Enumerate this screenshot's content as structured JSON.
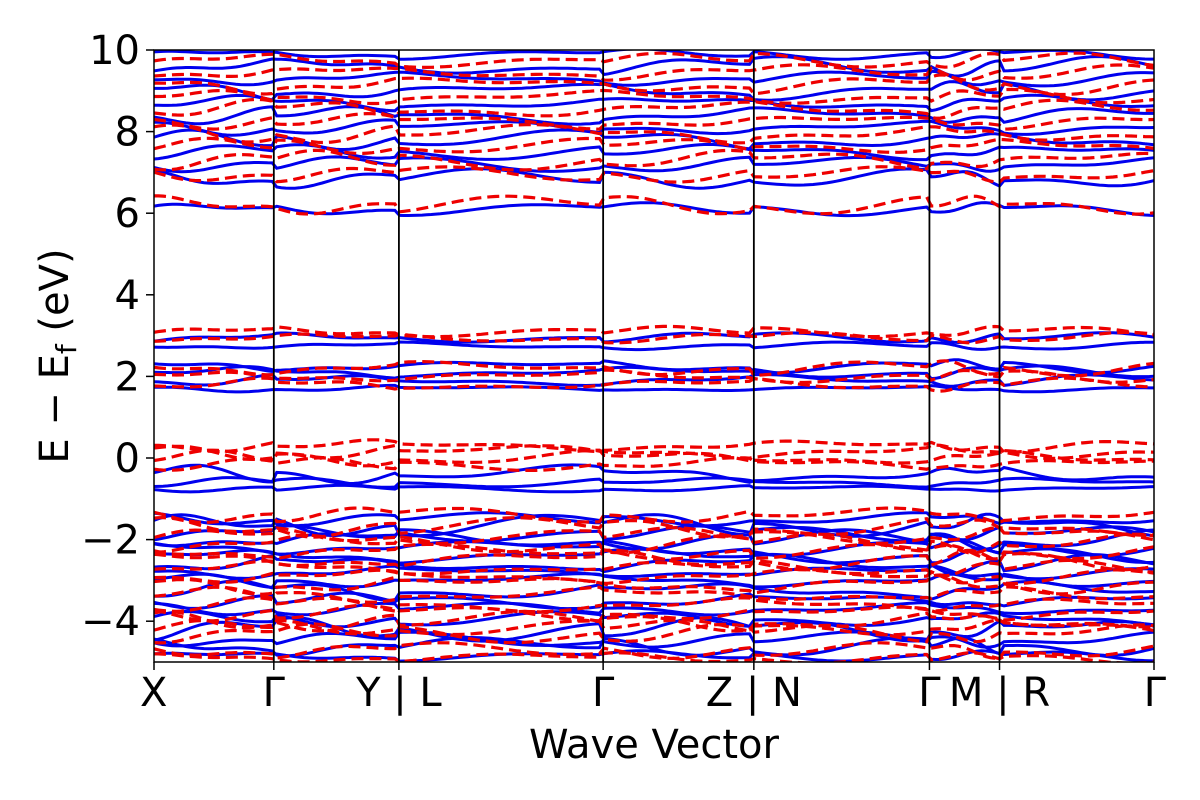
{
  "chart_data": {
    "type": "line",
    "xlabel": "Wave Vector",
    "ylabel": "E − E",
    "ylabel_sub": "f",
    "ylabel_unit": " (eV)",
    "ylim": [
      -5,
      10
    ],
    "yticks": [
      {
        "value": -4,
        "label": "−4"
      },
      {
        "value": -2,
        "label": "−2"
      },
      {
        "value": 0,
        "label": "0"
      },
      {
        "value": 2,
        "label": "2"
      },
      {
        "value": 4,
        "label": "4"
      },
      {
        "value": 6,
        "label": "6"
      },
      {
        "value": 8,
        "label": "8"
      },
      {
        "value": 10,
        "label": "10"
      }
    ],
    "xlim": [
      0,
      1
    ],
    "high_symmetry_points": [
      {
        "x": 0.0,
        "label": "X"
      },
      {
        "x": 0.159,
        "label": "Γ"
      },
      {
        "x": 0.325,
        "label": "Y | L"
      },
      {
        "x": 0.596,
        "label": "Γ"
      },
      {
        "x": 0.796,
        "label": "Z | N"
      },
      {
        "x": 1.029,
        "label": "Γ"
      },
      {
        "x": 1.122,
        "label": "M | R"
      },
      {
        "x": 1.327,
        "label": "Γ"
      }
    ],
    "x_max": 1.327,
    "grid": false,
    "series": [
      {
        "style": "solid",
        "color": "#0000ee",
        "bands": [
          {
            "base": -4.85,
            "amp": 0.08
          },
          {
            "base": -4.62,
            "amp": 0.15
          },
          {
            "base": -4.45,
            "amp": 0.12
          },
          {
            "base": -4.2,
            "amp": 0.18
          },
          {
            "base": -3.95,
            "amp": 0.12
          },
          {
            "base": -3.7,
            "amp": 0.1
          },
          {
            "base": -3.5,
            "amp": 0.12
          },
          {
            "base": -3.25,
            "amp": 0.15
          },
          {
            "base": -3.0,
            "amp": 0.12
          },
          {
            "base": -2.8,
            "amp": 0.1
          },
          {
            "base": -2.6,
            "amp": 0.15
          },
          {
            "base": -2.4,
            "amp": 0.12
          },
          {
            "base": -2.2,
            "amp": 0.12
          },
          {
            "base": -2.0,
            "amp": 0.15
          },
          {
            "base": -1.85,
            "amp": 0.12
          },
          {
            "base": -1.65,
            "amp": 0.18
          },
          {
            "base": -1.5,
            "amp": 0.1
          },
          {
            "base": -0.75,
            "amp": 0.05
          },
          {
            "base": -0.6,
            "amp": 0.08
          },
          {
            "base": -0.4,
            "amp": 0.15
          },
          {
            "base": 1.7,
            "amp": 0.05
          },
          {
            "base": 1.9,
            "amp": 0.1
          },
          {
            "base": 2.1,
            "amp": 0.1
          },
          {
            "base": 2.25,
            "amp": 0.1
          },
          {
            "base": 2.75,
            "amp": 0.06
          },
          {
            "base": 2.95,
            "amp": 0.08
          },
          {
            "base": 6.1,
            "amp": 0.1
          },
          {
            "base": 6.85,
            "amp": 0.15
          },
          {
            "base": 7.2,
            "amp": 0.12
          },
          {
            "base": 7.5,
            "amp": 0.12
          },
          {
            "base": 7.8,
            "amp": 0.15
          },
          {
            "base": 8.1,
            "amp": 0.12
          },
          {
            "base": 8.4,
            "amp": 0.15
          },
          {
            "base": 8.7,
            "amp": 0.12
          },
          {
            "base": 9.0,
            "amp": 0.15
          },
          {
            "base": 9.3,
            "amp": 0.12
          },
          {
            "base": 9.6,
            "amp": 0.15
          },
          {
            "base": 9.9,
            "amp": 0.08
          }
        ]
      },
      {
        "style": "dashed",
        "color": "#ee0000",
        "bands": [
          {
            "base": -4.9,
            "amp": 0.08
          },
          {
            "base": -4.72,
            "amp": 0.12
          },
          {
            "base": -4.3,
            "amp": 0.15
          },
          {
            "base": -4.15,
            "amp": 0.12
          },
          {
            "base": -4.0,
            "amp": 0.15
          },
          {
            "base": -3.8,
            "amp": 0.12
          },
          {
            "base": -3.6,
            "amp": 0.12
          },
          {
            "base": -3.35,
            "amp": 0.12
          },
          {
            "base": -3.1,
            "amp": 0.15
          },
          {
            "base": -2.9,
            "amp": 0.12
          },
          {
            "base": -2.7,
            "amp": 0.12
          },
          {
            "base": -2.5,
            "amp": 0.15
          },
          {
            "base": -2.3,
            "amp": 0.12
          },
          {
            "base": -2.1,
            "amp": 0.15
          },
          {
            "base": -1.9,
            "amp": 0.12
          },
          {
            "base": -1.7,
            "amp": 0.15
          },
          {
            "base": -1.4,
            "amp": 0.12
          },
          {
            "base": -0.15,
            "amp": 0.1
          },
          {
            "base": 0.0,
            "amp": 0.12
          },
          {
            "base": 0.15,
            "amp": 0.12
          },
          {
            "base": 0.3,
            "amp": 0.1
          },
          {
            "base": 1.8,
            "amp": 0.1
          },
          {
            "base": 2.0,
            "amp": 0.1
          },
          {
            "base": 2.2,
            "amp": 0.12
          },
          {
            "base": 2.95,
            "amp": 0.08
          },
          {
            "base": 3.1,
            "amp": 0.08
          },
          {
            "base": 6.2,
            "amp": 0.15
          },
          {
            "base": 6.95,
            "amp": 0.12
          },
          {
            "base": 7.3,
            "amp": 0.15
          },
          {
            "base": 7.65,
            "amp": 0.12
          },
          {
            "base": 7.95,
            "amp": 0.15
          },
          {
            "base": 8.25,
            "amp": 0.12
          },
          {
            "base": 8.55,
            "amp": 0.15
          },
          {
            "base": 8.85,
            "amp": 0.12
          },
          {
            "base": 9.15,
            "amp": 0.15
          },
          {
            "base": 9.45,
            "amp": 0.12
          },
          {
            "base": 9.75,
            "amp": 0.12
          }
        ]
      }
    ]
  }
}
